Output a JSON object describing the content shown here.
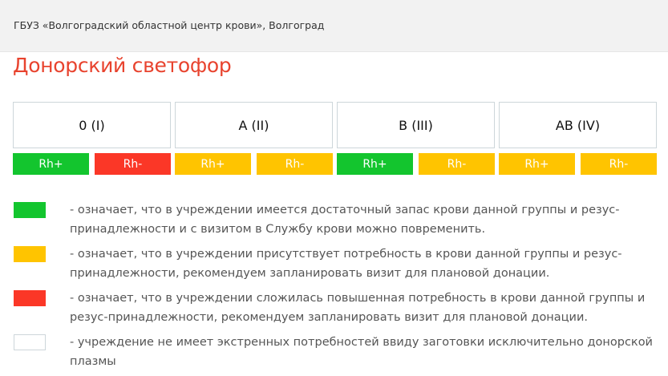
{
  "header": {
    "org": "ГБУЗ «Волгоградский областной центр крови», Волгоград"
  },
  "title": "Донорский светофор",
  "colors": {
    "green": "#13c52e",
    "yellow": "#ffc400",
    "red": "#fb3727",
    "white": "#ffffff"
  },
  "groups": [
    {
      "name": "0 (I)",
      "rh": [
        {
          "label": "Rh+",
          "status": "green"
        },
        {
          "label": "Rh-",
          "status": "red"
        }
      ]
    },
    {
      "name": "A (II)",
      "rh": [
        {
          "label": "Rh+",
          "status": "yellow"
        },
        {
          "label": "Rh-",
          "status": "yellow"
        }
      ]
    },
    {
      "name": "B (III)",
      "rh": [
        {
          "label": "Rh+",
          "status": "green"
        },
        {
          "label": "Rh-",
          "status": "yellow"
        }
      ]
    },
    {
      "name": "AB (IV)",
      "rh": [
        {
          "label": "Rh+",
          "status": "yellow"
        },
        {
          "label": "Rh-",
          "status": "yellow"
        }
      ]
    }
  ],
  "legend": [
    {
      "status": "green",
      "text": "- означает, что в учреждении имеется достаточный запас крови данной группы и резус-принадлежности и с визитом в Службу крови можно повременить."
    },
    {
      "status": "yellow",
      "text": "- означает, что в учреждении присутствует потребность в крови данной группы и резус-принадлежности, рекомендуем запланировать визит для плановой донации."
    },
    {
      "status": "red",
      "text": "- означает, что в учреждении сложилась повышенная потребность в крови данной группы и резус-принадлежности, рекомендуем запланировать визит для плановой донации."
    },
    {
      "status": "white",
      "text": "- учреждение не имеет экстренных потребностей ввиду заготовки исключительно донорской плазмы"
    }
  ]
}
